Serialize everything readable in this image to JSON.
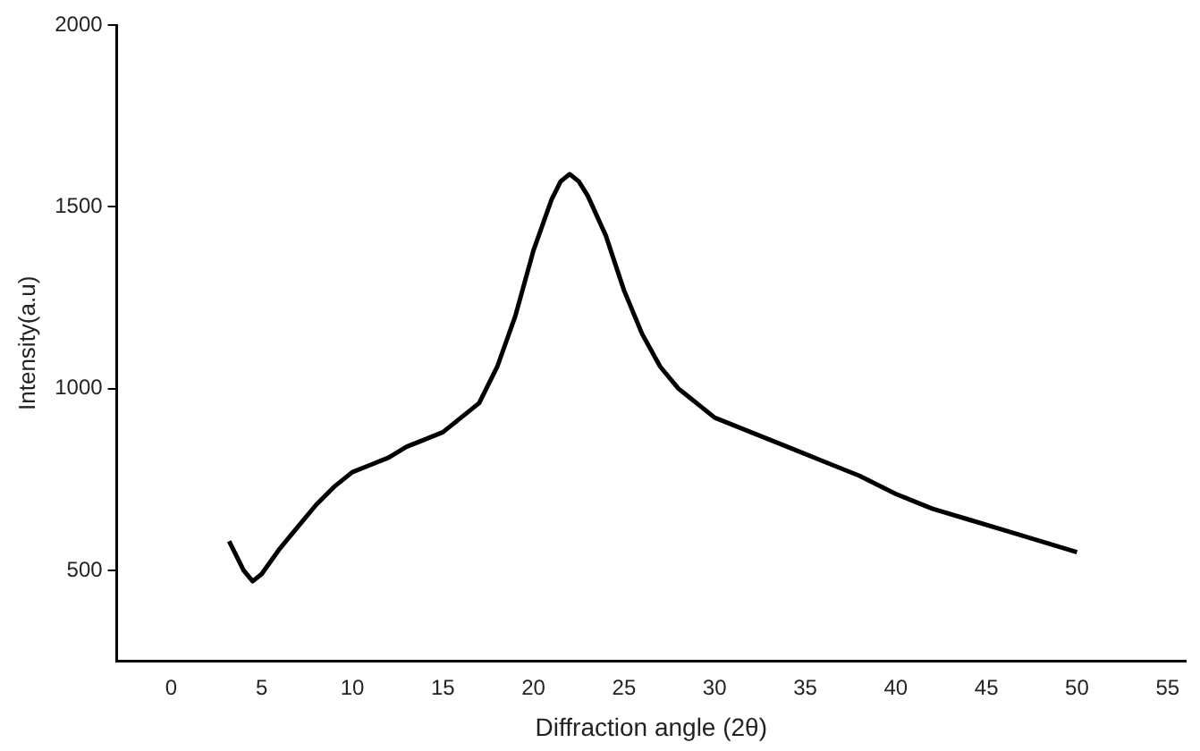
{
  "chart_data": {
    "type": "line",
    "xlabel": "Diffraction angle (2θ)",
    "ylabel": "Intensity(a.u)",
    "x": [
      3.2,
      3.6,
      4.0,
      4.5,
      5.0,
      6.0,
      7.0,
      8.0,
      9.0,
      10.0,
      11.0,
      12.0,
      13.0,
      14.0,
      15.0,
      16.0,
      17.0,
      18.0,
      19.0,
      20.0,
      21.0,
      21.5,
      22.0,
      22.5,
      23.0,
      24.0,
      25.0,
      26.0,
      27.0,
      28.0,
      30.0,
      32.0,
      34.0,
      36.0,
      38.0,
      40.0,
      42.0,
      44.0,
      46.0,
      48.0,
      50.0
    ],
    "series": [
      {
        "color": "#000000",
        "values": [
          580,
          540,
          500,
          470,
          490,
          560,
          620,
          680,
          730,
          770,
          790,
          810,
          840,
          860,
          880,
          920,
          960,
          1060,
          1200,
          1380,
          1520,
          1570,
          1590,
          1570,
          1530,
          1420,
          1270,
          1150,
          1060,
          1000,
          920,
          880,
          840,
          800,
          760,
          710,
          670,
          640,
          610,
          580,
          550
        ]
      }
    ],
    "xlim": [
      -3,
      56
    ],
    "xticks": [
      0,
      5,
      10,
      15,
      20,
      25,
      30,
      35,
      40,
      45,
      50,
      55
    ],
    "ylim": [
      250,
      2000
    ],
    "yticks": [
      500,
      1000,
      1500,
      2000
    ],
    "grid": false,
    "legend": false,
    "marker": "none",
    "line_style": "solid"
  }
}
